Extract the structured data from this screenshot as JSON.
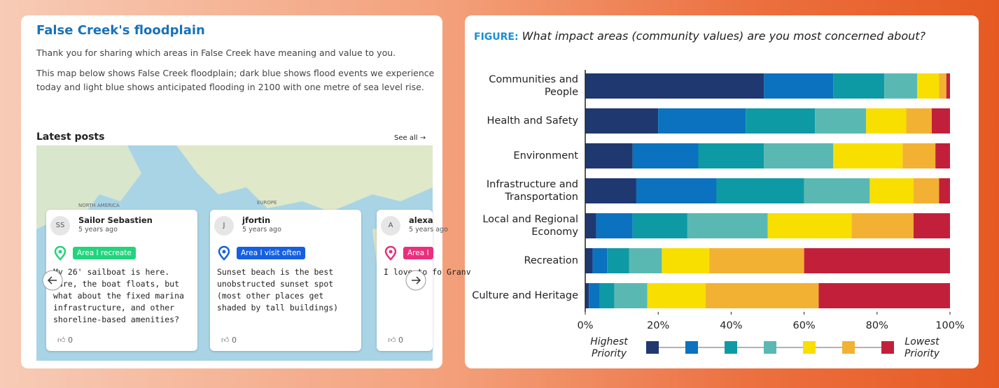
{
  "page": {
    "title": "False Creek's floodplain",
    "paragraphs": [
      "Thank you for sharing which areas in False Creek have meaning and value to you.",
      "This map below shows False Creek floodplain; dark blue shows flood events we experience today and light blue shows anticipated flooding in 2100 with one metre of sea level rise."
    ],
    "latest_posts": "Latest posts",
    "see_all": "See all",
    "map_labels": [
      "NORTH AMERICA",
      "EUROPE"
    ],
    "posts": [
      {
        "initials": "SS",
        "name": "Sailor Sebastien",
        "time": "5 years ago",
        "tag": "Area I recreate",
        "tag_color": "#22d47c",
        "text": "My 26' sailboat is here. Sure, the boat floats, but what about the fixed marina infrastructure, and other shoreline-based amenities?",
        "likes": 0
      },
      {
        "initials": "J",
        "name": "jfortin",
        "time": "5 years ago",
        "tag": "Area I visit often",
        "tag_color": "#1560e0",
        "text": "Sunset beach is the best unobstructed sunset spot (most other places get shaded by tall buildings)",
        "likes": 0
      },
      {
        "initials": "A",
        "name": "alexa",
        "time": "5 years ago",
        "tag": "Area I",
        "tag_color": "#ea2f7c",
        "text": "I love to fo Granv",
        "likes": 0
      }
    ]
  },
  "chart_data": {
    "type": "bar",
    "orientation": "horizontal",
    "stacked": true,
    "figure_label": "FIGURE:",
    "title": "What impact areas (community values) are you most concerned about?",
    "categories": [
      "Communities and People",
      "Health and Safety",
      "Environment",
      "Infrastructure and Transportation",
      "Local and Regional Economy",
      "Recreation",
      "Culture and Heritage"
    ],
    "series": [
      {
        "color": "#1f3870",
        "values": [
          49,
          20,
          13,
          14,
          3,
          2,
          1
        ]
      },
      {
        "color": "#0a72bf",
        "values": [
          19,
          24,
          18,
          22,
          10,
          4,
          3
        ]
      },
      {
        "color": "#0e9aa5",
        "values": [
          14,
          19,
          18,
          24,
          15,
          6,
          4
        ]
      },
      {
        "color": "#5ab8b3",
        "values": [
          9,
          14,
          19,
          18,
          22,
          9,
          9
        ]
      },
      {
        "color": "#f8df00",
        "values": [
          6,
          11,
          19,
          12,
          23,
          13,
          16
        ]
      },
      {
        "color": "#f3b133",
        "values": [
          2,
          7,
          9,
          7,
          17,
          26,
          31
        ]
      },
      {
        "color": "#c2203a",
        "values": [
          1,
          5,
          4,
          3,
          10,
          40,
          36
        ]
      }
    ],
    "xlim": [
      0,
      100
    ],
    "xticks": [
      {
        "value": 0,
        "label": "0%"
      },
      {
        "value": 20,
        "label": "20%"
      },
      {
        "value": 40,
        "label": "40%"
      },
      {
        "value": 60,
        "label": "60%"
      },
      {
        "value": 80,
        "label": "80%"
      },
      {
        "value": 100,
        "label": "100%"
      }
    ],
    "legend_labels": [
      "Highest Priority",
      "Lowest Priority"
    ]
  }
}
